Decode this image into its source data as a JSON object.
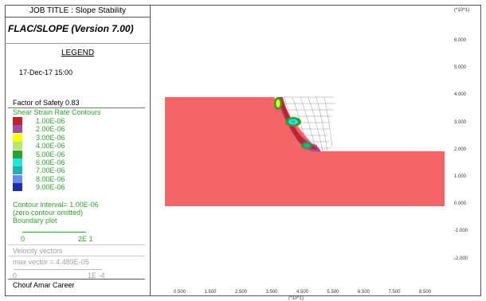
{
  "header": {
    "job_title": "JOB TITLE : Slope Stability",
    "program": "FLAC/SLOPE (Version 7.00)"
  },
  "legend": {
    "title": "LEGEND",
    "date": "17-Dec-17  15:00",
    "factor_of_safety": "Factor of Safety  0.83",
    "contour_heading": "Shear Strain Rate Contours",
    "contours": [
      {
        "label": "1.00E-06",
        "color": "#c0232b"
      },
      {
        "label": "2.00E-06",
        "color": "#a04ea0"
      },
      {
        "label": "3.00E-06",
        "color": "#ffff00"
      },
      {
        "label": "4.00E-06",
        "color": "#b8e86a"
      },
      {
        "label": "5.00E-06",
        "color": "#2fa02f"
      },
      {
        "label": "6.00E-06",
        "color": "#20e8d8"
      },
      {
        "label": "7.00E-06",
        "color": "#20b0b0"
      },
      {
        "label": "8.00E-06",
        "color": "#6a8ae8"
      },
      {
        "label": "9.00E-06",
        "color": "#1e2ea8"
      }
    ],
    "contour_interval": "Contour interval=  1.00E-06",
    "zero_omitted": "(zero contour omitted)",
    "boundary_plot": "Boundary plot",
    "boundary_scale_min": "0",
    "boundary_scale_max": "2E  1",
    "velocity_vectors": "Velocity vectors",
    "max_vector": "max vector =    4.489E-05",
    "vector_scale_min": "0",
    "vector_scale_max": "1E -4",
    "author": "Chouf Amar Career"
  },
  "axes": {
    "y_multiplier": "(*10^1)",
    "x_multiplier": "(*10^1)",
    "y_ticks": [
      "6.000",
      "5.000",
      "4.000",
      "3.000",
      "2.000",
      "1.000",
      "0.000",
      "-1.000",
      "-2.000"
    ],
    "x_ticks": [
      "0.500",
      "1.500",
      "2.500",
      "3.500",
      "4.500",
      "5.500",
      "6.500",
      "7.500",
      "8.500"
    ]
  },
  "model": {
    "fill_color": "#f46464"
  }
}
